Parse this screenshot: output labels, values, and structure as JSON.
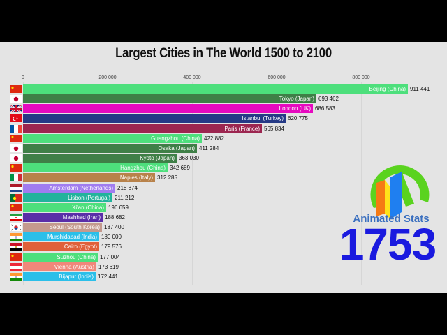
{
  "header": {
    "title": "Largest Cities in The World 1500 to 2100"
  },
  "axis": {
    "ticks": [
      "0",
      "200 000",
      "400 000",
      "600 000",
      "800 000"
    ]
  },
  "branding": {
    "name": "Animated Stats",
    "logo": "animated-stats-logo"
  },
  "year": "1753",
  "colors": {
    "background": "#e4e4e4",
    "year": "#1a1adf",
    "brand": "#3a6fbf"
  },
  "chart_data": {
    "type": "bar",
    "orientation": "horizontal",
    "title": "Largest Cities in The World 1500 to 2100",
    "subtitle": "1753",
    "xlabel": "",
    "ylabel": "",
    "xlim": [
      0,
      911441
    ],
    "x_ticks": [
      0,
      200000,
      400000,
      600000,
      800000
    ],
    "grid": true,
    "categories": [
      "Beijing (China)",
      "Tokyo (Japan)",
      "London (UK)",
      "Istanbul (Turkey)",
      "Paris (France)",
      "Guangzhou (China)",
      "Osaka (Japan)",
      "Kyoto (Japan)",
      "Hangzhou (China)",
      "Naples (Italy)",
      "Amsterdam (Netherlands)",
      "Lisbon (Portugal)",
      "Xi'an (China)",
      "Mashhad (Iran)",
      "Seoul (South Korea)",
      "Murshidabad (India)",
      "Cairo (Egypt)",
      "Suzhou (China)",
      "Vienna (Austria)",
      "Bijapur (India)"
    ],
    "values": [
      911441,
      693462,
      686583,
      620775,
      565834,
      422882,
      411284,
      363030,
      342689,
      312285,
      218874,
      211212,
      196659,
      188682,
      187400,
      180000,
      179576,
      177004,
      173619,
      172441
    ]
  },
  "rows": [
    {
      "label": "Beijing (China)",
      "value": 911441,
      "display": "911 441",
      "color": "#4ddf7c",
      "flag": "china"
    },
    {
      "label": "Tokyo (Japan)",
      "value": 693462,
      "display": "693 462",
      "color": "#3f7f47",
      "flag": "japan"
    },
    {
      "label": "London (UK)",
      "value": 686583,
      "display": "686 583",
      "color": "#e60abf",
      "flag": "uk"
    },
    {
      "label": "Istanbul (Turkey)",
      "value": 620775,
      "display": "620 775",
      "color": "#253a86",
      "flag": "turkey"
    },
    {
      "label": "Paris (France)",
      "value": 565834,
      "display": "565 834",
      "color": "#9c2650",
      "flag": "france"
    },
    {
      "label": "Guangzhou (China)",
      "value": 422882,
      "display": "422 882",
      "color": "#4ddf7c",
      "flag": "china"
    },
    {
      "label": "Osaka (Japan)",
      "value": 411284,
      "display": "411 284",
      "color": "#3f7f47",
      "flag": "japan"
    },
    {
      "label": "Kyoto (Japan)",
      "value": 363030,
      "display": "363 030",
      "color": "#3f7f47",
      "flag": "japan"
    },
    {
      "label": "Hangzhou (China)",
      "value": 342689,
      "display": "342 689",
      "color": "#4ddf7c",
      "flag": "china"
    },
    {
      "label": "Naples (Italy)",
      "value": 312285,
      "display": "312 285",
      "color": "#b8824a",
      "flag": "italy"
    },
    {
      "label": "Amsterdam (Netherlands)",
      "value": 218874,
      "display": "218 874",
      "color": "#a07cf0",
      "flag": "netherlands"
    },
    {
      "label": "Lisbon (Portugal)",
      "value": 211212,
      "display": "211 212",
      "color": "#22b39c",
      "flag": "portugal"
    },
    {
      "label": "Xi'an (China)",
      "value": 196659,
      "display": "196 659",
      "color": "#4ddf7c",
      "flag": "china"
    },
    {
      "label": "Mashhad (Iran)",
      "value": 188682,
      "display": "188 682",
      "color": "#5a2ea8",
      "flag": "iran"
    },
    {
      "label": "Seoul (South Korea)",
      "value": 187400,
      "display": "187 400",
      "color": "#c49a8e",
      "flag": "south-korea"
    },
    {
      "label": "Murshidabad (India)",
      "value": 180000,
      "display": "180 000",
      "color": "#2bbfe9",
      "flag": "india"
    },
    {
      "label": "Cairo (Egypt)",
      "value": 179576,
      "display": "179 576",
      "color": "#e0603a",
      "flag": "egypt"
    },
    {
      "label": "Suzhou (China)",
      "value": 177004,
      "display": "177 004",
      "color": "#4ddf7c",
      "flag": "china"
    },
    {
      "label": "Vienna (Austria)",
      "value": 173619,
      "display": "173 619",
      "color": "#f0877a",
      "flag": "austria"
    },
    {
      "label": "Bijapur (India)",
      "value": 172441,
      "display": "172 441",
      "color": "#2bbfe9",
      "flag": "india"
    }
  ]
}
